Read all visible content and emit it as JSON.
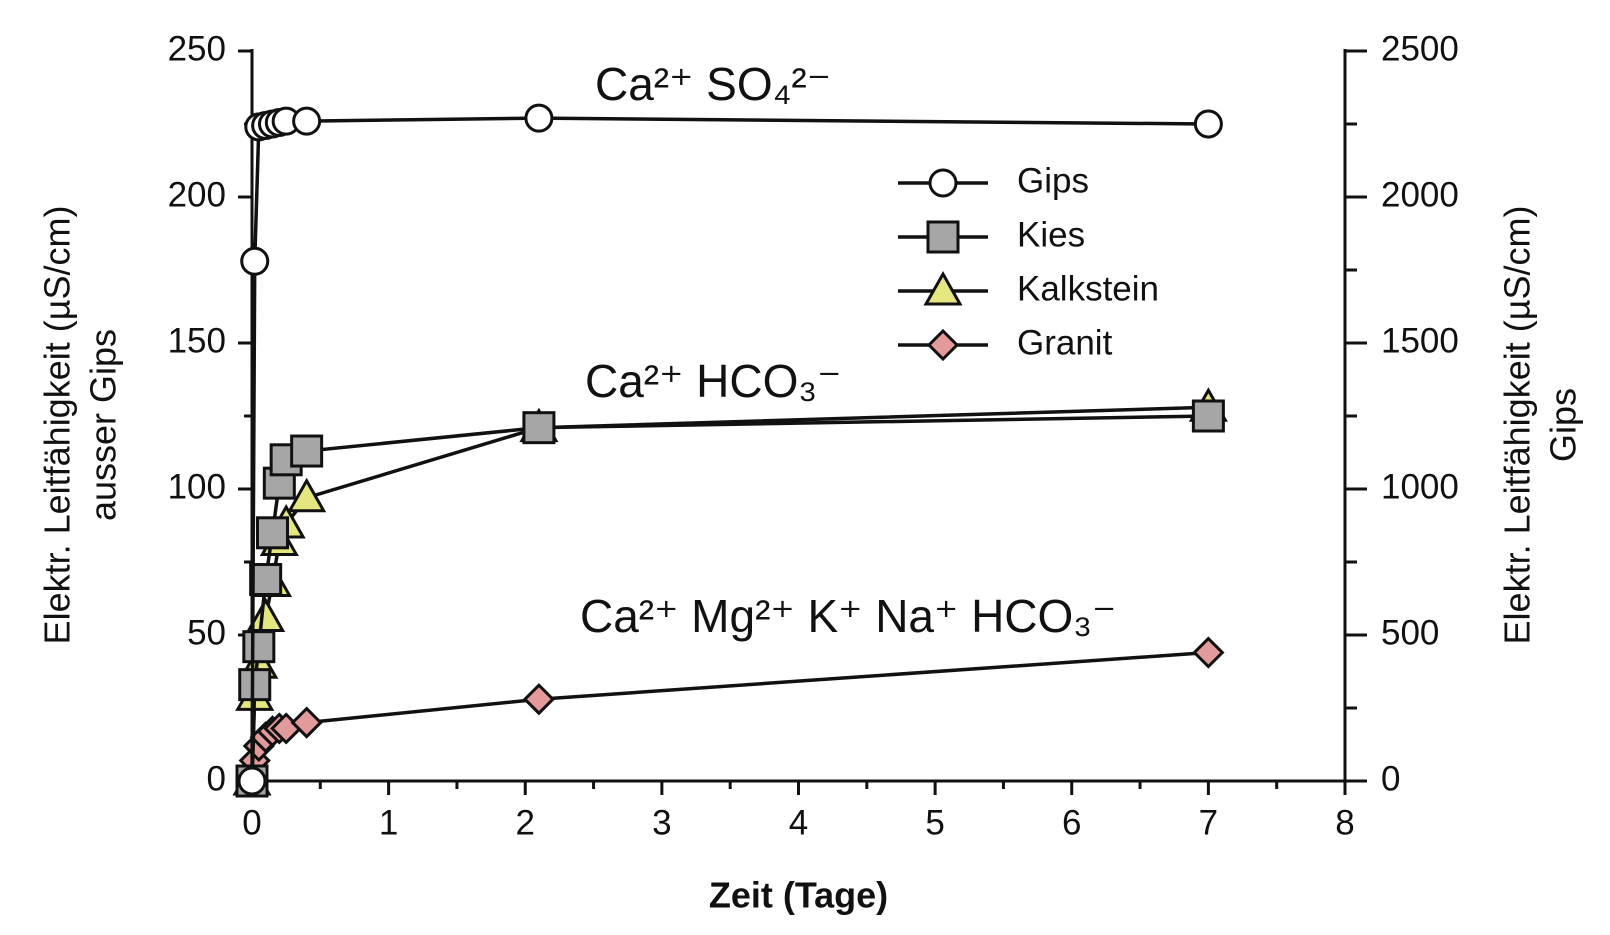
{
  "chart_data": {
    "type": "line",
    "x_label": "Zeit (Tage)",
    "y_label": [
      "Elektr. Leitfähigkeit (µS/cm)",
      "ausser Gips"
    ],
    "y2_label": [
      "Elektr. Leitfähigkeit (µS/cm)",
      "Gips"
    ],
    "annotations": [
      "Ca²⁺ SO₄²⁻",
      "Ca²⁺ HCO₃⁻",
      "Ca²⁺ Mg²⁺ K⁺  Na⁺ HCO₃⁻"
    ],
    "x": [
      0,
      0.02,
      0.05,
      0.1,
      0.15,
      0.2,
      0.25,
      0.4,
      2.1,
      7
    ],
    "series": [
      {
        "name": "Gips",
        "color": "#ffffff",
        "marker": "circle",
        "axis": "y2",
        "values": [
          0,
          1780,
          2240,
          2245,
          2250,
          2255,
          2260,
          2260,
          2270,
          2250
        ]
      },
      {
        "name": "Kies",
        "color": "#a6a6a6",
        "marker": "square",
        "values": [
          0,
          33,
          46,
          69,
          85,
          102,
          110,
          113,
          121,
          125
        ]
      },
      {
        "name": "Kalkstein",
        "color": "#e6e680",
        "marker": "triangle",
        "values": [
          0,
          29,
          40,
          56,
          68,
          82,
          88,
          97,
          121,
          128
        ]
      },
      {
        "name": "Granit",
        "color": "#e39a9a",
        "marker": "diamond",
        "values": [
          0,
          7,
          12,
          15,
          17,
          18,
          18,
          20,
          28,
          44
        ]
      }
    ],
    "xlim": [
      0,
      8
    ],
    "xticks": [
      0,
      1,
      2,
      3,
      4,
      5,
      6,
      7,
      8
    ],
    "ylim": [
      0,
      250
    ],
    "yticks": [
      0,
      50,
      100,
      150,
      200,
      250
    ],
    "y2lim": [
      0,
      2500
    ],
    "y2ticks": [
      0,
      500,
      1000,
      1500,
      2000,
      2500
    ],
    "grid": false
  }
}
